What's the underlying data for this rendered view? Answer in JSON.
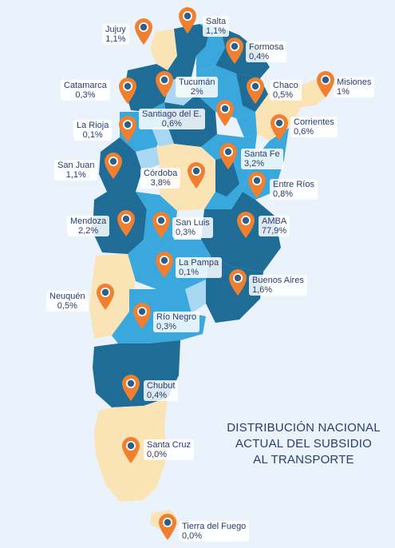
{
  "title": [
    "DISTRIBUCIÓN NACIONAL",
    "ACTUAL DEL SUBSIDIO",
    "AL TRANSPORTE"
  ],
  "colors": {
    "pin": "#f07f30",
    "pin_dot": "#2f5f86",
    "dark_blue": "#1f6d97",
    "mid_blue": "#3aa7dd",
    "light_blue": "#a8d8f2",
    "sand": "#fae3b5",
    "label_text": "#2a3d6b",
    "background": "#eaf3fb"
  },
  "regions": [
    {
      "name": "Jujuy",
      "value": "1,1%"
    },
    {
      "name": "Salta",
      "value": "1,1%"
    },
    {
      "name": "Formosa",
      "value": "0,4%"
    },
    {
      "name": "Catamarca",
      "value": "0,3%"
    },
    {
      "name": "Tucumán",
      "value": "2%"
    },
    {
      "name": "Chaco",
      "value": "0,5%"
    },
    {
      "name": "Misiones",
      "value": "1%"
    },
    {
      "name": "La Rioja",
      "value": "0,1%"
    },
    {
      "name": "Santiago del E.",
      "value": "0,6%"
    },
    {
      "name": "Corrientes",
      "value": "0,6%"
    },
    {
      "name": "San Juan",
      "value": "1,1%"
    },
    {
      "name": "Córdoba",
      "value": "3,8%"
    },
    {
      "name": "Santa Fe",
      "value": "3,2%"
    },
    {
      "name": "Entre Ríos",
      "value": "0,8%"
    },
    {
      "name": "Mendoza",
      "value": "2,2%"
    },
    {
      "name": "San Luis",
      "value": "0,3%"
    },
    {
      "name": "AMBA",
      "value": "77,9%"
    },
    {
      "name": "La Pampa",
      "value": "0,1%"
    },
    {
      "name": "Buenos Aires",
      "value": "1,6%"
    },
    {
      "name": "Neuquén",
      "value": "0,5%"
    },
    {
      "name": "Río Negro",
      "value": "0,3%"
    },
    {
      "name": "Chubut",
      "value": "0,4%"
    },
    {
      "name": "Santa Cruz",
      "value": "0,0%"
    },
    {
      "name": "Tierra del Fuego",
      "value": "0,0%"
    }
  ]
}
